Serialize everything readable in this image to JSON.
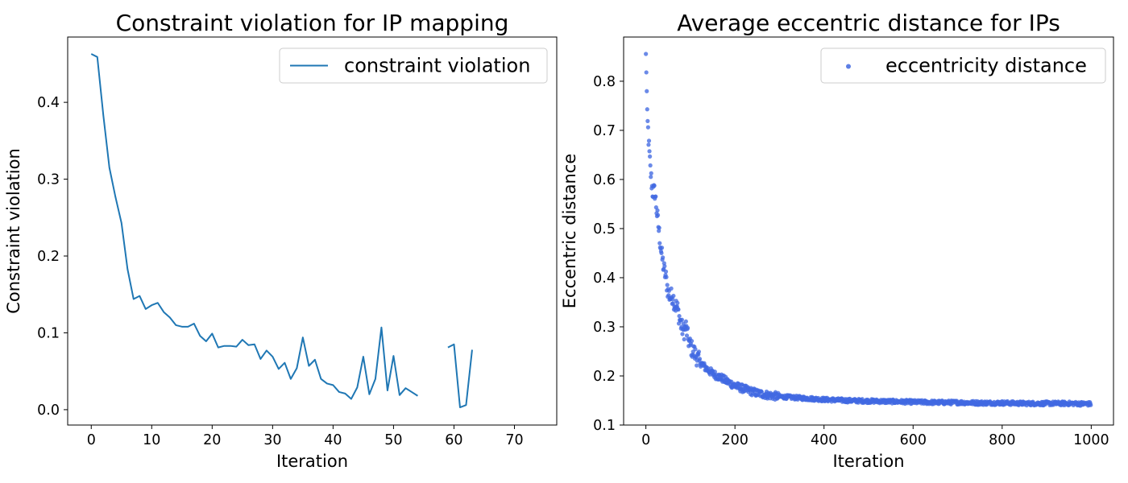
{
  "chart_data": [
    {
      "type": "line",
      "title": "Constraint violation for IP mapping",
      "xlabel": "Iteration",
      "ylabel": "Constraint violation",
      "xlim": [
        -3.9,
        77
      ],
      "ylim": [
        -0.02,
        0.485
      ],
      "xticks": [
        0,
        10,
        20,
        30,
        40,
        50,
        60,
        70
      ],
      "yticks": [
        0.0,
        0.1,
        0.2,
        0.3,
        0.4
      ],
      "ytick_labels": [
        "0.0",
        "0.1",
        "0.2",
        "0.3",
        "0.4"
      ],
      "grid": false,
      "legend_position": "top-right",
      "series": [
        {
          "name": "constraint violation",
          "color": "#1f77b4",
          "x": [
            0,
            1,
            2,
            3,
            4,
            5,
            6,
            7,
            8,
            9,
            10,
            11,
            12,
            13,
            14,
            15,
            16,
            17,
            18,
            19,
            20,
            21,
            22,
            23,
            24,
            25,
            26,
            27,
            28,
            29,
            30,
            31,
            32,
            33,
            34,
            35,
            36,
            37,
            38,
            39,
            40,
            41,
            42,
            43,
            44,
            45,
            46,
            47,
            48,
            49,
            50,
            51,
            52,
            53,
            54,
            55,
            56,
            57,
            58,
            59,
            60,
            61,
            62,
            63
          ],
          "y": [
            0.463,
            0.459,
            0.383,
            0.315,
            0.277,
            0.243,
            0.183,
            0.144,
            0.148,
            0.131,
            0.136,
            0.139,
            0.127,
            0.12,
            0.11,
            0.108,
            0.108,
            0.112,
            0.096,
            0.089,
            0.099,
            0.081,
            0.083,
            0.083,
            0.082,
            0.091,
            0.084,
            0.085,
            0.066,
            0.077,
            0.069,
            0.053,
            0.061,
            0.04,
            0.054,
            0.094,
            0.057,
            0.065,
            0.04,
            0.034,
            0.032,
            0.023,
            0.021,
            0.014,
            0.029,
            0.069,
            0.02,
            0.04,
            0.107,
            0.025,
            0.07,
            0.019,
            0.028,
            0.023,
            0.018,
            null,
            null,
            null,
            null,
            0.081,
            0.085,
            0.003,
            0.006,
            0.078
          ]
        }
      ]
    },
    {
      "type": "scatter",
      "title": "Average eccentric distance for IPs",
      "xlabel": "Iteration",
      "ylabel": "Eccentric distance",
      "xlim": [
        -50,
        1050
      ],
      "ylim": [
        0.1,
        0.89
      ],
      "xticks": [
        0,
        200,
        400,
        600,
        800,
        1000
      ],
      "yticks": [
        0.1,
        0.2,
        0.3,
        0.4,
        0.5,
        0.6,
        0.7,
        0.8
      ],
      "ytick_labels": [
        "0.1",
        "0.2",
        "0.3",
        "0.4",
        "0.5",
        "0.6",
        "0.7",
        "0.8"
      ],
      "grid": false,
      "legend_position": "top-right",
      "series": [
        {
          "name": "eccentricity distance",
          "color": "#4169e1",
          "n_points": 1000,
          "sample_x": [
            0,
            1,
            2,
            3,
            5,
            7,
            10,
            15,
            20,
            25,
            30,
            35,
            40,
            45,
            50,
            55,
            60,
            65,
            70,
            75,
            80,
            85,
            90,
            95,
            100,
            110,
            120,
            130,
            140,
            150,
            160,
            170,
            180,
            190,
            200,
            225,
            250,
            275,
            300,
            350,
            400,
            450,
            500,
            550,
            600,
            650,
            700,
            750,
            800,
            850,
            900,
            950,
            1000
          ],
          "sample_y": [
            0.85,
            0.825,
            0.775,
            0.725,
            0.7,
            0.665,
            0.62,
            0.575,
            0.575,
            0.53,
            0.49,
            0.45,
            0.42,
            0.4,
            0.37,
            0.36,
            0.365,
            0.345,
            0.34,
            0.32,
            0.3,
            0.29,
            0.3,
            0.275,
            0.26,
            0.245,
            0.23,
            0.22,
            0.212,
            0.205,
            0.2,
            0.196,
            0.19,
            0.185,
            0.18,
            0.172,
            0.165,
            0.161,
            0.158,
            0.155,
            0.152,
            0.15,
            0.149,
            0.148,
            0.147,
            0.146,
            0.146,
            0.145,
            0.145,
            0.144,
            0.144,
            0.144,
            0.143
          ]
        }
      ]
    }
  ]
}
